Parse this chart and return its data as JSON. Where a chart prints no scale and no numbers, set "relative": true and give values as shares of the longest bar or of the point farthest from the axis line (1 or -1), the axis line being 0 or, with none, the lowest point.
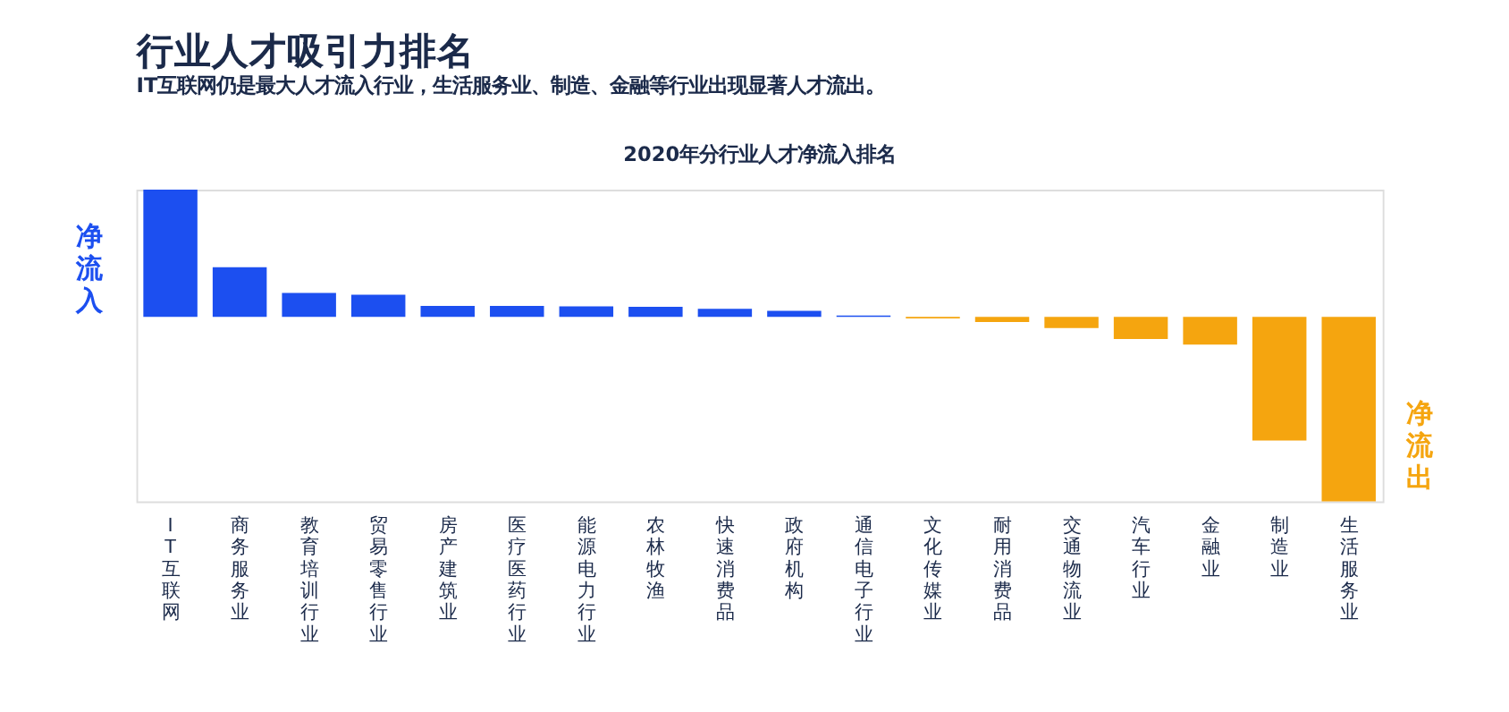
{
  "chart_data": {
    "type": "bar",
    "title": "行业人才吸引力排名",
    "subtitle": "IT互联网仍是最大人才流入行业，生活服务业、制造、金融等行业出现显著人才流出。",
    "annotations": [
      "2020年分行业人才净流入排名",
      "净流入",
      "净流出"
    ],
    "categories": [
      "IT互联网",
      "商务服务业",
      "教育培训行业",
      "贸易零售行业",
      "房产建筑业",
      "医疗医药行业",
      "能源电力行业",
      "农林牧渔",
      "快速消费品",
      "政府机构",
      "通信电子行业",
      "文化传媒业",
      "耐用消费品",
      "交通物流业",
      "汽车行业",
      "金融业",
      "制造业",
      "生活服务业"
    ],
    "values": [
      0.69,
      0.27,
      0.13,
      0.12,
      0.06,
      0.06,
      0.058,
      0.055,
      0.044,
      0.033,
      0.008,
      -0.008,
      -0.027,
      -0.06,
      -0.12,
      -0.15,
      -0.67,
      -1
    ],
    "colors": [
      "#1c4ff0",
      "#1c4ff0",
      "#1c4ff0",
      "#1c4ff0",
      "#1c4ff0",
      "#1c4ff0",
      "#1c4ff0",
      "#1c4ff0",
      "#1c4ff0",
      "#1c4ff0",
      "#1c4ff0",
      "#f5a50f",
      "#f5a50f",
      "#f5a50f",
      "#f5a50f",
      "#f5a50f",
      "#f5a50f",
      "#f5a50f"
    ],
    "relative": true,
    "grid": false,
    "legend": false
  }
}
